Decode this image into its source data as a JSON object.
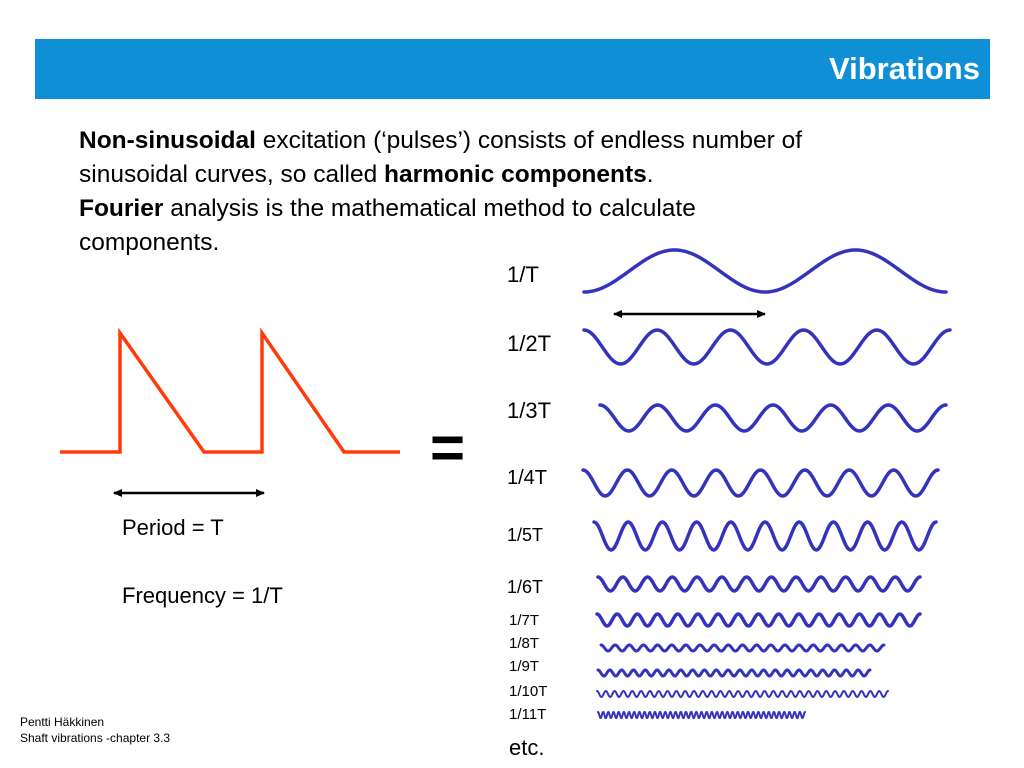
{
  "header": {
    "title": "Vibrations"
  },
  "intro": {
    "line1_bold": "Non-sinusoidal",
    "line1_rest": " excitation (‘pulses’) consists of  endless number of",
    "line2_pre": "sinusoidal curves, so called ",
    "line2_bold": "harmonic components",
    "line2_post": ".",
    "line3_bold": "Fourier",
    "line3_rest": " analysis is the mathematical method to calculate",
    "line4": "components."
  },
  "pulse_figure": {
    "period_label": "Period = T",
    "frequency_label": "Frequency = 1/T",
    "color": "#ff3b0a"
  },
  "equals_sign": "=",
  "harmonics": {
    "color": "#3333bb",
    "items": [
      {
        "label": "1/T",
        "cycles": 2
      },
      {
        "label": "1/2T",
        "cycles": 5
      },
      {
        "label": "1/3T",
        "cycles": 6
      },
      {
        "label": "1/4T",
        "cycles": 8
      },
      {
        "label": "1/5T",
        "cycles": 10
      },
      {
        "label": "1/6T",
        "cycles": 13
      },
      {
        "label": "1/7T",
        "cycles": 16
      },
      {
        "label": "1/8T",
        "cycles": 20
      },
      {
        "label": "1/9T",
        "cycles": 23
      },
      {
        "label": "1/10T",
        "cycles": 33
      },
      {
        "label": "1/11T",
        "cycles": 40
      }
    ],
    "etc_label": "etc."
  },
  "footer": {
    "author": "Pentti Häkkinen",
    "chapter": "Shaft vibrations  -chapter 3.3"
  }
}
